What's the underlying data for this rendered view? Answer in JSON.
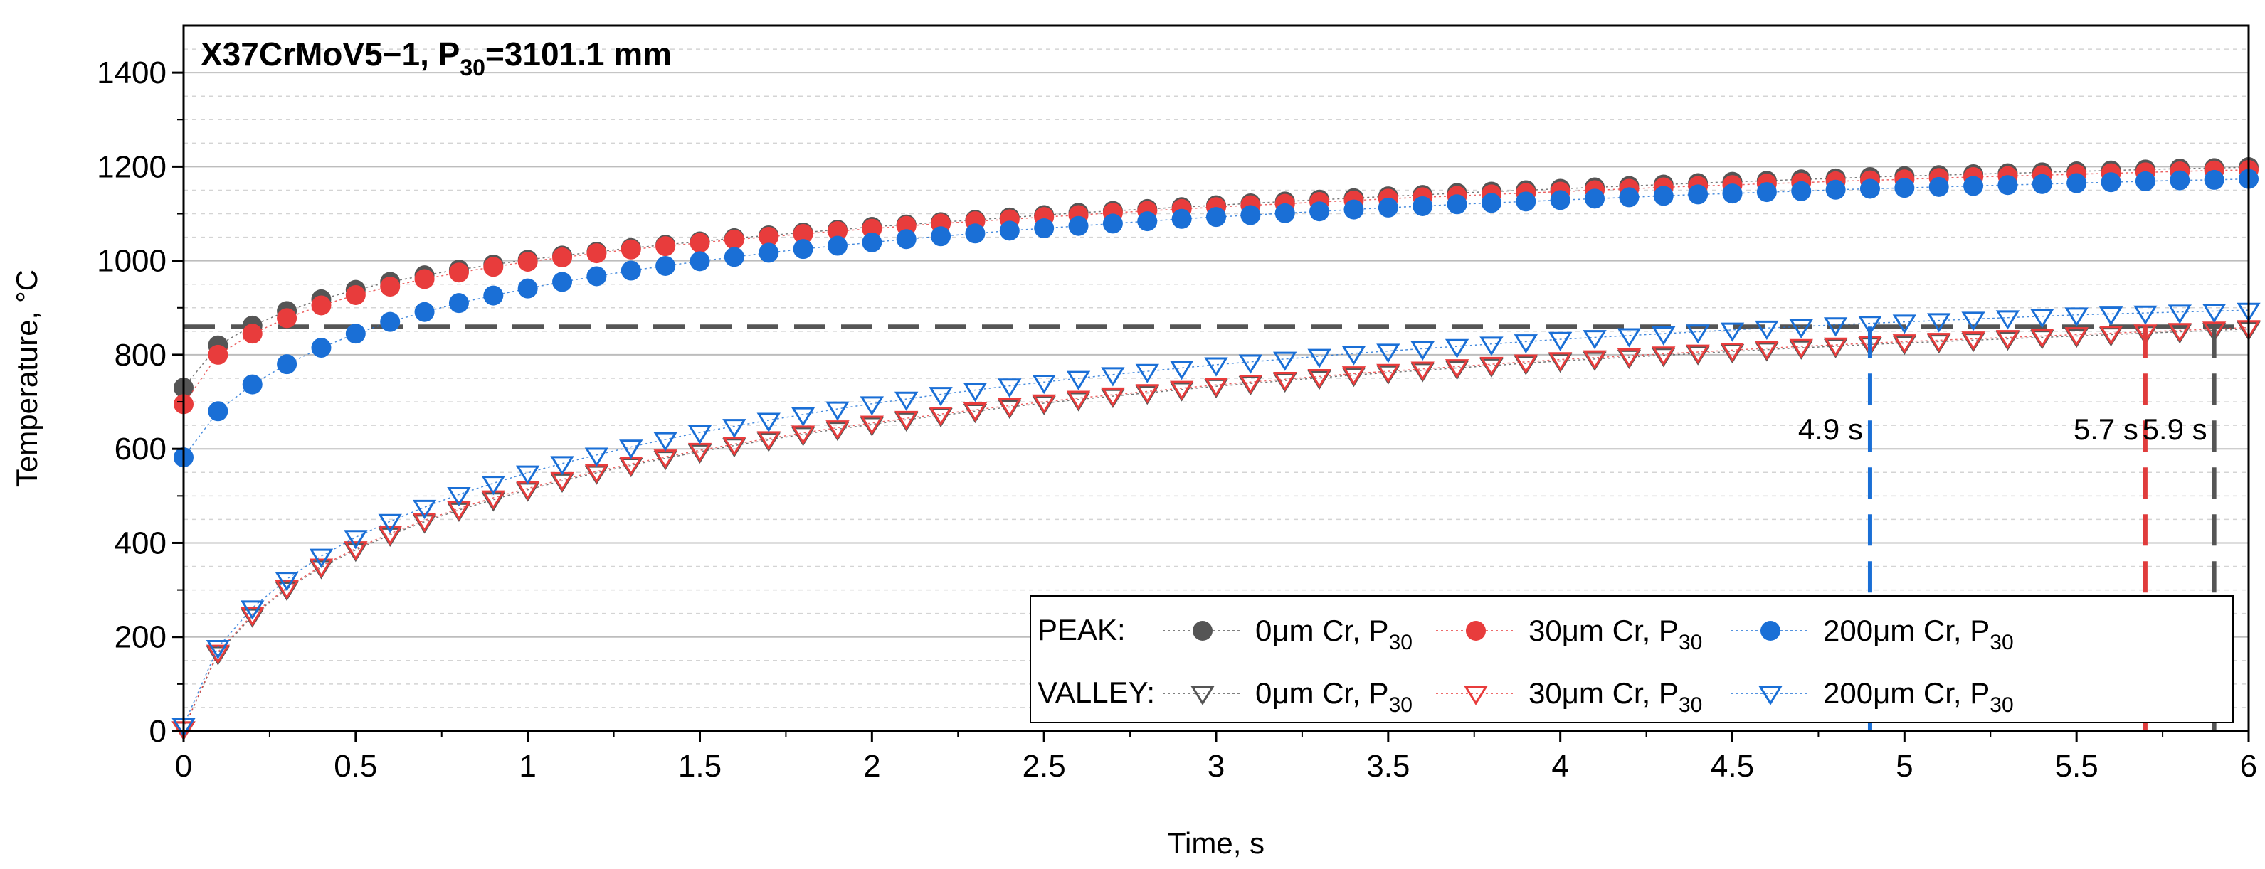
{
  "chart_data": {
    "type": "scatter",
    "title": "X37CrMoV5−1, P",
    "title_sub": "30",
    "title_tail": "=3101.1 mm",
    "xlabel": "Time, s",
    "ylabel": "Temperature, °C",
    "xlim": [
      0,
      6
    ],
    "ylim": [
      0,
      1500
    ],
    "x_ticks": [
      0,
      0.5,
      1,
      1.5,
      2,
      2.5,
      3,
      3.5,
      4,
      4.5,
      5,
      5.5,
      6
    ],
    "y_ticks": [
      0,
      200,
      400,
      600,
      800,
      1000,
      1200,
      1400
    ],
    "reference_line": {
      "y": 860,
      "color": "#555555"
    },
    "vertical_markers": [
      {
        "x": 4.9,
        "label": "4.9 s",
        "color": "#1a6fd6"
      },
      {
        "x": 5.7,
        "label": "5.7 s",
        "color": "#e03c3c"
      },
      {
        "x": 5.9,
        "label": "5.9 s",
        "color": "#555555"
      }
    ],
    "legend": {
      "placement": "bottom-right",
      "row_labels": [
        "PEAK:",
        "VALLEY:"
      ]
    },
    "x": [
      0,
      0.1,
      0.2,
      0.3,
      0.4,
      0.5,
      0.6,
      0.7,
      0.8,
      0.9,
      1.0,
      1.1,
      1.2,
      1.3,
      1.4,
      1.5,
      1.6,
      1.7,
      1.8,
      1.9,
      2.0,
      2.1,
      2.2,
      2.3,
      2.4,
      2.5,
      2.6,
      2.7,
      2.8,
      2.9,
      3.0,
      3.1,
      3.2,
      3.3,
      3.4,
      3.5,
      3.6,
      3.7,
      3.8,
      3.9,
      4.0,
      4.1,
      4.2,
      4.3,
      4.4,
      4.5,
      4.6,
      4.7,
      4.8,
      4.9,
      5.0,
      5.1,
      5.2,
      5.3,
      5.4,
      5.5,
      5.6,
      5.7,
      5.8,
      5.9,
      6.0
    ],
    "series": [
      {
        "name": "0μm Cr, P",
        "sub": "30",
        "group": "PEAK",
        "marker": "circle",
        "color": "#555555",
        "values": [
          730,
          820,
          862,
          893,
          918,
          938,
          955,
          969,
          981,
          992,
          1002,
          1011,
          1019,
          1027,
          1034,
          1041,
          1048,
          1054,
          1060,
          1066,
          1072,
          1077,
          1082,
          1087,
          1092,
          1097,
          1102,
          1106,
          1110,
          1114,
          1118,
          1122,
          1126,
          1130,
          1133,
          1137,
          1140,
          1144,
          1147,
          1150,
          1153,
          1156,
          1159,
          1162,
          1165,
          1168,
          1170,
          1173,
          1175,
          1178,
          1180,
          1182,
          1184,
          1186,
          1188,
          1190,
          1192,
          1194,
          1196,
          1197,
          1199
        ]
      },
      {
        "name": "30μm Cr, P",
        "sub": "30",
        "group": "PEAK",
        "marker": "circle",
        "color": "#e83c3c",
        "values": [
          695,
          800,
          845,
          878,
          905,
          927,
          945,
          961,
          975,
          987,
          998,
          1007,
          1016,
          1024,
          1031,
          1038,
          1045,
          1051,
          1057,
          1063,
          1068,
          1074,
          1079,
          1084,
          1088,
          1093,
          1097,
          1102,
          1106,
          1110,
          1114,
          1118,
          1121,
          1125,
          1128,
          1132,
          1135,
          1138,
          1141,
          1144,
          1147,
          1150,
          1153,
          1156,
          1159,
          1161,
          1164,
          1166,
          1169,
          1171,
          1173,
          1176,
          1178,
          1180,
          1182,
          1184,
          1186,
          1188,
          1190,
          1192,
          1193
        ]
      },
      {
        "name": "200μm Cr, P",
        "sub": "30",
        "group": "PEAK",
        "marker": "circle",
        "color": "#1a6fd6",
        "values": [
          582,
          680,
          737,
          780,
          815,
          845,
          870,
          891,
          910,
          926,
          941,
          955,
          967,
          979,
          989,
          999,
          1008,
          1017,
          1025,
          1032,
          1039,
          1046,
          1052,
          1058,
          1064,
          1069,
          1074,
          1079,
          1084,
          1089,
          1093,
          1097,
          1101,
          1105,
          1109,
          1113,
          1116,
          1120,
          1123,
          1126,
          1129,
          1132,
          1135,
          1138,
          1141,
          1143,
          1146,
          1148,
          1151,
          1153,
          1155,
          1157,
          1159,
          1161,
          1163,
          1165,
          1167,
          1169,
          1171,
          1172,
          1174
        ]
      },
      {
        "name": "0μm Cr, P",
        "sub": "30",
        "group": "VALLEY",
        "marker": "triangle-down",
        "color": "#555555",
        "values": [
          5,
          165,
          245,
          302,
          348,
          385,
          417,
          445,
          470,
          492,
          513,
          532,
          549,
          565,
          580,
          594,
          607,
          619,
          631,
          642,
          652,
          662,
          671,
          680,
          689,
          697,
          705,
          712,
          719,
          726,
          733,
          739,
          745,
          751,
          757,
          762,
          767,
          772,
          777,
          782,
          787,
          791,
          795,
          799,
          803,
          807,
          811,
          815,
          818,
          822,
          825,
          828,
          831,
          834,
          837,
          840,
          843,
          846,
          849,
          852,
          855
        ]
      },
      {
        "name": "30μm Cr, P",
        "sub": "30",
        "group": "VALLEY",
        "marker": "triangle-down",
        "color": "#e83c3c",
        "values": [
          5,
          168,
          248,
          305,
          351,
          388,
          420,
          448,
          473,
          496,
          516,
          535,
          552,
          568,
          583,
          597,
          610,
          622,
          634,
          645,
          655,
          665,
          674,
          683,
          692,
          700,
          708,
          715,
          722,
          729,
          736,
          742,
          748,
          754,
          760,
          765,
          770,
          775,
          780,
          785,
          790,
          794,
          798,
          802,
          806,
          810,
          814,
          818,
          821,
          825,
          828,
          831,
          834,
          837,
          840,
          843,
          846,
          849,
          852,
          855,
          858
        ]
      },
      {
        "name": "200μm Cr, P",
        "sub": "30",
        "group": "VALLEY",
        "marker": "triangle-down",
        "color": "#1a6fd6",
        "values": [
          12,
          178,
          262,
          323,
          372,
          412,
          446,
          476,
          503,
          527,
          549,
          569,
          587,
          604,
          620,
          635,
          648,
          661,
          673,
          685,
          696,
          706,
          716,
          725,
          734,
          742,
          750,
          758,
          765,
          772,
          779,
          785,
          791,
          797,
          803,
          808,
          813,
          818,
          823,
          828,
          833,
          837,
          841,
          845,
          849,
          853,
          857,
          860,
          864,
          867,
          870,
          873,
          876,
          879,
          882,
          885,
          887,
          889,
          891,
          893,
          895
        ]
      }
    ]
  }
}
